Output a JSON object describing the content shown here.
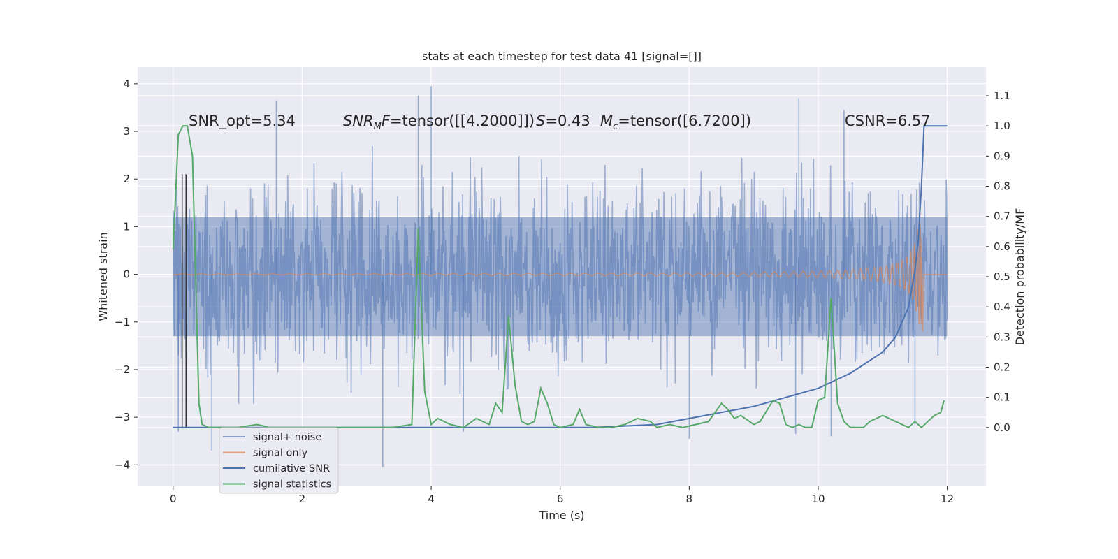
{
  "figure": {
    "title": "stats at each timestep for test data 41 [signal=[]]",
    "xlabel": "Time (s)",
    "ylabel_left": "Whitened strain",
    "ylabel_right": "Detection probability/MF",
    "annotations": {
      "snr_opt": "SNR_opt=5.34",
      "snr_mf_sym": "SNR",
      "snr_mf_sub": "M",
      "snr_mf_f": "F",
      "snr_mf_val": "=tensor([[4.2000]])",
      "s_sym": "S",
      "s_val": "=0.43",
      "mc_sym": "M",
      "mc_sub": "c",
      "mc_val": "=tensor([6.7200])",
      "csnr": "CSNR=6.57"
    }
  },
  "chart_data": {
    "type": "line",
    "title": "stats at each timestep for test data 41 [signal=[]]",
    "xlabel": "Time (s)",
    "ylabel": "Whitened strain",
    "y2label": "Detection probability/MF",
    "xlim": [
      -0.55,
      12.6
    ],
    "ylim": [
      -4.45,
      4.35
    ],
    "y2lim": [
      -0.195,
      1.195
    ],
    "x_ticks": [
      0,
      2,
      4,
      6,
      8,
      10,
      12
    ],
    "y_ticks": [
      -4,
      -3,
      -2,
      -1,
      0,
      1,
      2,
      3,
      4
    ],
    "y2_ticks": [
      0.0,
      0.1,
      0.2,
      0.3,
      0.4,
      0.5,
      0.6,
      0.7,
      0.8,
      0.9,
      1.0,
      1.1
    ],
    "grid": true,
    "legend": {
      "placement": "lower-left",
      "entries": [
        {
          "label": "signal+ noise",
          "color": "#4c72b0"
        },
        {
          "label": "signal only",
          "color": "#dd8452"
        },
        {
          "label": "cumilative SNR",
          "color": "#4c72b0"
        },
        {
          "label": "signal statistics",
          "color": "#55a868"
        }
      ]
    },
    "series": [
      {
        "name": "signal+ noise",
        "color": "#4c72b0",
        "axis": "left",
        "x_range": [
          0,
          12
        ],
        "core_envelope": [
          -1.3,
          1.2
        ],
        "typical_envelope": [
          -2.3,
          1.9
        ],
        "peaks": [
          [
            1.6,
            3.65
          ],
          [
            3.8,
            3.75
          ],
          [
            4.0,
            3.95
          ],
          [
            9.7,
            3.7
          ],
          [
            10.4,
            3.45
          ],
          [
            3.25,
            -4.05
          ],
          [
            0.6,
            -3.7
          ],
          [
            8.0,
            -3.45
          ],
          [
            9.65,
            -3.35
          ],
          [
            10.2,
            -3.4
          ],
          [
            4.5,
            -3.3
          ],
          [
            0.08,
            -3.3
          ],
          [
            11.5,
            -3.15
          ]
        ]
      },
      {
        "name": "signal only",
        "color": "#dd8452",
        "axis": "left",
        "x_range": [
          0,
          12
        ],
        "chirp_end": 11.62,
        "max_amplitude": 1.1,
        "min_amplitude": -1.2
      },
      {
        "name": "cumilative SNR",
        "color": "#4c72b0",
        "axis": "right",
        "x": [
          0,
          6.5,
          7.5,
          8.0,
          8.5,
          9.0,
          9.5,
          10.0,
          10.5,
          11.0,
          11.2,
          11.4,
          11.5,
          11.55,
          11.6,
          11.64,
          11.64,
          12.0
        ],
        "y": [
          0.0,
          0.0,
          0.01,
          0.03,
          0.05,
          0.07,
          0.1,
          0.13,
          0.18,
          0.25,
          0.3,
          0.4,
          0.52,
          0.62,
          0.8,
          1.0,
          1.0,
          1.0
        ]
      },
      {
        "name": "signal statistics",
        "color": "#55a868",
        "axis": "right",
        "x": [
          0.0,
          0.08,
          0.15,
          0.22,
          0.3,
          0.4,
          0.45,
          0.55,
          0.7,
          1.0,
          1.3,
          1.5,
          1.8,
          2.2,
          2.6,
          3.0,
          3.4,
          3.7,
          3.8,
          3.9,
          4.0,
          4.1,
          4.3,
          4.5,
          4.7,
          4.9,
          5.0,
          5.1,
          5.2,
          5.3,
          5.4,
          5.5,
          5.6,
          5.7,
          5.8,
          5.9,
          6.0,
          6.2,
          6.3,
          6.4,
          6.6,
          6.8,
          7.0,
          7.2,
          7.4,
          7.5,
          7.7,
          7.9,
          8.1,
          8.3,
          8.4,
          8.5,
          8.6,
          8.7,
          8.8,
          9.0,
          9.1,
          9.3,
          9.4,
          9.5,
          9.6,
          9.7,
          9.8,
          9.9,
          10.0,
          10.1,
          10.2,
          10.3,
          10.4,
          10.5,
          10.7,
          10.8,
          11.0,
          11.2,
          11.4,
          11.5,
          11.6,
          11.7,
          11.8,
          11.9,
          11.95
        ],
        "y": [
          0.59,
          0.97,
          1.0,
          1.0,
          0.9,
          0.08,
          0.01,
          0.0,
          0.0,
          0.0,
          0.01,
          0.0,
          0.0,
          0.0,
          0.0,
          0.0,
          0.0,
          0.01,
          0.66,
          0.12,
          0.01,
          0.03,
          0.01,
          0.0,
          0.03,
          0.01,
          0.08,
          0.05,
          0.37,
          0.14,
          0.02,
          0.01,
          0.02,
          0.13,
          0.08,
          0.01,
          0.0,
          0.01,
          0.06,
          0.01,
          0.0,
          0.0,
          0.01,
          0.03,
          0.02,
          0.0,
          0.01,
          0.0,
          0.01,
          0.02,
          0.05,
          0.08,
          0.06,
          0.03,
          0.04,
          0.01,
          0.02,
          0.09,
          0.08,
          0.01,
          0.0,
          0.01,
          0.0,
          0.0,
          0.09,
          0.1,
          0.43,
          0.08,
          0.02,
          0.0,
          0.0,
          0.02,
          0.04,
          0.02,
          0.0,
          0.02,
          0.0,
          0.02,
          0.04,
          0.05,
          0.09
        ]
      }
    ],
    "vertical_markers": [
      0.14,
      0.2
    ]
  }
}
